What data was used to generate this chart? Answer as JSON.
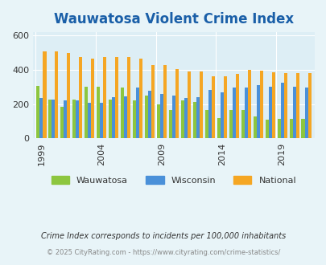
{
  "title": "Wauwatosa Violent Crime Index",
  "years": [
    1999,
    2000,
    2001,
    2002,
    2003,
    2004,
    2005,
    2006,
    2007,
    2008,
    2009,
    2010,
    2011,
    2012,
    2013,
    2014,
    2015,
    2016,
    2017,
    2018,
    2019,
    2020,
    2021
  ],
  "wauwatosa": [
    305,
    225,
    185,
    225,
    300,
    300,
    225,
    295,
    220,
    250,
    200,
    165,
    220,
    215,
    165,
    120,
    165,
    165,
    130,
    110,
    115,
    115,
    115
  ],
  "wisconsin": [
    235,
    225,
    220,
    220,
    210,
    210,
    240,
    245,
    295,
    280,
    260,
    250,
    235,
    240,
    285,
    270,
    295,
    295,
    310,
    300,
    325,
    300,
    295
  ],
  "national": [
    510,
    510,
    500,
    475,
    465,
    475,
    475,
    475,
    465,
    430,
    430,
    405,
    390,
    390,
    365,
    365,
    375,
    400,
    395,
    385,
    380,
    380,
    380
  ],
  "wauwatosa_color": "#8dc63f",
  "wisconsin_color": "#4a90d9",
  "national_color": "#f5a623",
  "bg_color": "#e8f4f8",
  "plot_bg": "#ddeef5",
  "ylabel": "",
  "ylim": [
    0,
    620
  ],
  "yticks": [
    0,
    200,
    400,
    600
  ],
  "xlabel_ticks": [
    1999,
    2004,
    2009,
    2014,
    2019
  ],
  "note": "Crime Index corresponds to incidents per 100,000 inhabitants",
  "footer": "© 2025 CityRating.com - https://www.cityrating.com/crime-statistics/",
  "title_color": "#1a5fa8",
  "note_color": "#333333",
  "footer_color": "#888888"
}
